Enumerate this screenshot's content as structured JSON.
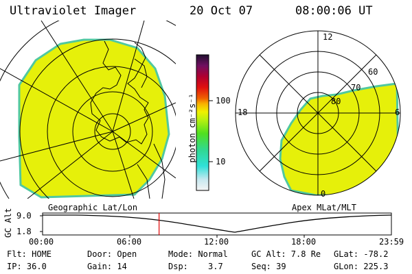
{
  "header": {
    "title": "Ultraviolet Imager",
    "date": "20 Oct 07",
    "time": "08:00:06 UT"
  },
  "colorbar": {
    "unit_label": "photon cm⁻²s⁻¹",
    "ticks": [
      "100",
      "10"
    ]
  },
  "geo_panel": {
    "label": "Geographic Lat/Lon",
    "fill_color": "#e6f00a",
    "edge_color": "#50c8a0"
  },
  "apex_panel": {
    "label": "Apex MLat/MLT",
    "lat_labels": [
      "80",
      "70",
      "60"
    ],
    "mlt_labels": [
      "12",
      "18",
      "6",
      "0"
    ]
  },
  "timeline": {
    "axis_label": "GC Alt",
    "y_ticks": [
      "9.0",
      "1.8"
    ],
    "x_ticks": [
      "00:00",
      "06:00",
      "12:00",
      "18:00",
      "23:59"
    ],
    "marker_color": "#e00000",
    "current_time_fraction": 0.334
  },
  "status": {
    "flt": "Flt: HOME",
    "ip": "IP: 36.0",
    "door": "Door: Open",
    "gain": "Gain: 14",
    "mode": "Mode: Normal",
    "dsp": "Dsp:",
    "dsp_value": "3.7",
    "gc_alt": "GC Alt: 7.8 Re",
    "seq": "Seq: 39",
    "glat": "GLat: -78.2",
    "glon": "GLon: 225.3"
  }
}
